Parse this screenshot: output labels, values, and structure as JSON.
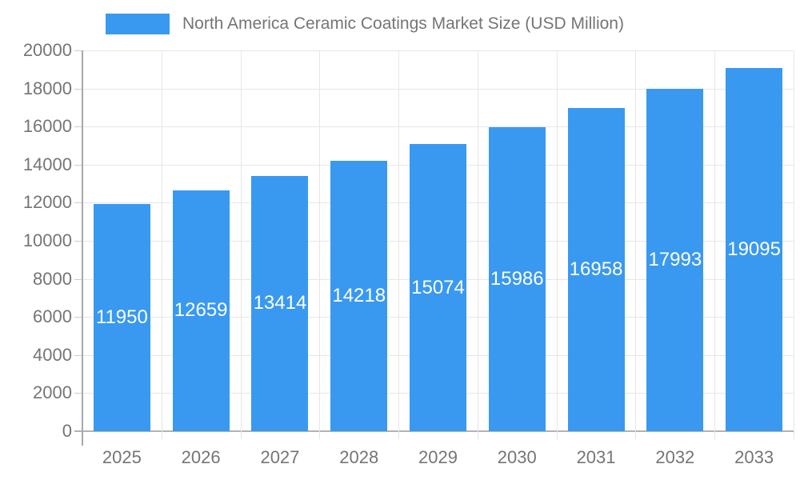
{
  "legend": {
    "label": "North America Ceramic Coatings Market Size (USD Million)"
  },
  "chart_data": {
    "type": "bar",
    "title": "North America Ceramic Coatings Market Size (USD Million)",
    "categories": [
      "2025",
      "2026",
      "2027",
      "2028",
      "2029",
      "2030",
      "2031",
      "2032",
      "2033"
    ],
    "values": [
      11950,
      12659,
      13414,
      14218,
      15074,
      15986,
      16958,
      17993,
      19095
    ],
    "xlabel": "",
    "ylabel": "",
    "ylim": [
      0,
      20000
    ],
    "ytick_step": 2000,
    "yticks": [
      0,
      2000,
      4000,
      6000,
      8000,
      10000,
      12000,
      14000,
      16000,
      18000,
      20000
    ],
    "grid": true,
    "legend_position": "top",
    "bar_color": "#3999f0",
    "value_label_color": "#ffffff",
    "axis_text_color": "#757575",
    "gridline_color": "#e6e6e6",
    "baseline_color": "#b3b3b3"
  }
}
